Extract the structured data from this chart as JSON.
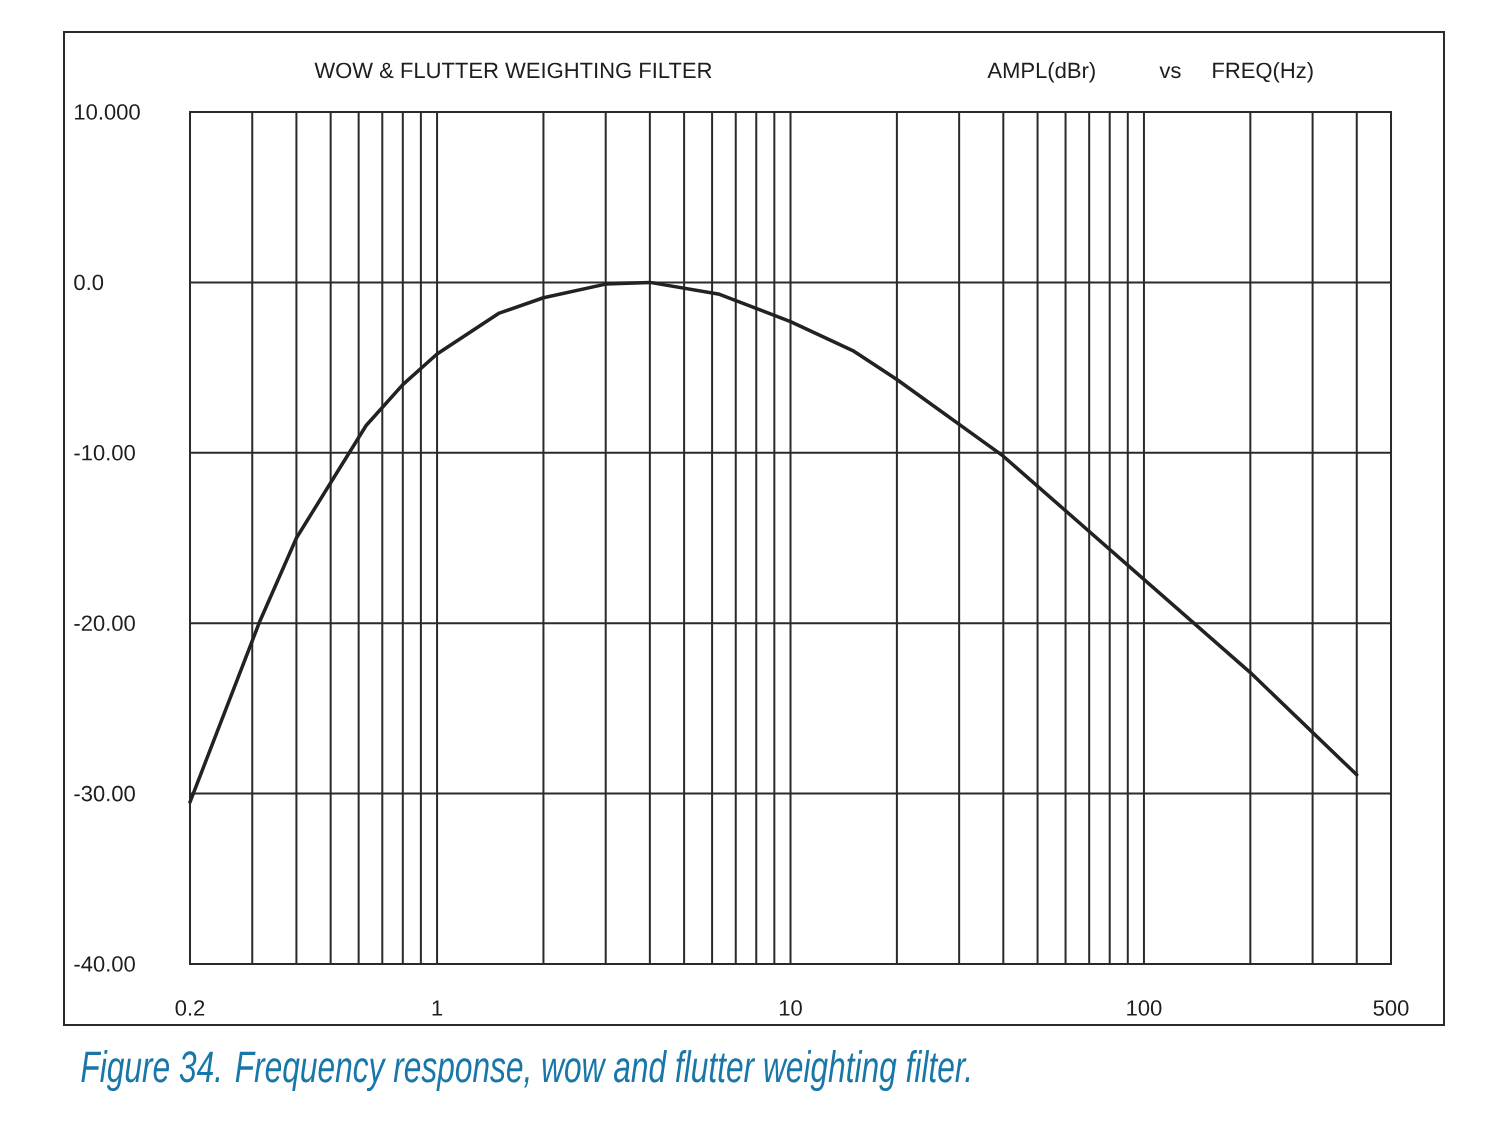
{
  "chart_data": {
    "type": "line",
    "title": "WOW & FLUTTER WEIGHTING FILTER",
    "ylabel": "AMPL(dBr)",
    "xlabel": "FREQ(Hz)",
    "annotations": [
      "vs",
      "Figure 34. Frequency response, wow and flutter weighting filter."
    ],
    "x": [
      0.2,
      0.315,
      0.4,
      0.63,
      0.8,
      1,
      1.5,
      2,
      3,
      4,
      6.3,
      10,
      15,
      20,
      40,
      200,
      400
    ],
    "series": [
      {
        "color": "#222222",
        "values": [
          -30.5,
          -19.9,
          -15.0,
          -8.4,
          -6.0,
          -4.2,
          -1.8,
          -0.9,
          -0.1,
          0.0,
          -0.7,
          -2.3,
          -4.0,
          -5.7,
          -10.2,
          -22.9,
          -28.9
        ]
      }
    ],
    "log": "x",
    "xlim": [
      0.2,
      500
    ],
    "ylim": [
      -40,
      10
    ],
    "xticks": [
      0.2,
      {
        "value": 0.3,
        "label": null
      },
      {
        "value": 0.4,
        "label": null
      },
      {
        "value": 0.5,
        "label": null
      },
      {
        "value": 0.6,
        "label": null
      },
      {
        "value": 0.7,
        "label": null
      },
      {
        "value": 0.8,
        "label": null
      },
      {
        "value": 0.9,
        "label": null
      },
      1,
      {
        "value": 2,
        "label": null
      },
      {
        "value": 3,
        "label": null
      },
      {
        "value": 4,
        "label": null
      },
      {
        "value": 5,
        "label": null
      },
      {
        "value": 6,
        "label": null
      },
      {
        "value": 7,
        "label": null
      },
      {
        "value": 8,
        "label": null
      },
      {
        "value": 9,
        "label": null
      },
      10,
      {
        "value": 20,
        "label": null
      },
      {
        "value": 30,
        "label": null
      },
      {
        "value": 40,
        "label": null
      },
      {
        "value": 50,
        "label": null
      },
      {
        "value": 60,
        "label": null
      },
      {
        "value": 70,
        "label": null
      },
      {
        "value": 80,
        "label": null
      },
      {
        "value": 90,
        "label": null
      },
      100,
      {
        "value": 200,
        "label": null
      },
      {
        "value": 300,
        "label": null
      },
      {
        "value": 400,
        "label": null
      },
      500
    ],
    "yticks": [
      {
        "value": 10,
        "label": "10.000"
      },
      {
        "value": 0,
        "label": "0.0"
      },
      {
        "value": -10,
        "label": "-10.00"
      },
      {
        "value": -20,
        "label": "-20.00"
      },
      {
        "value": -30,
        "label": "-30.00"
      },
      {
        "value": -40,
        "label": "-40.00"
      }
    ],
    "grid": true
  }
}
